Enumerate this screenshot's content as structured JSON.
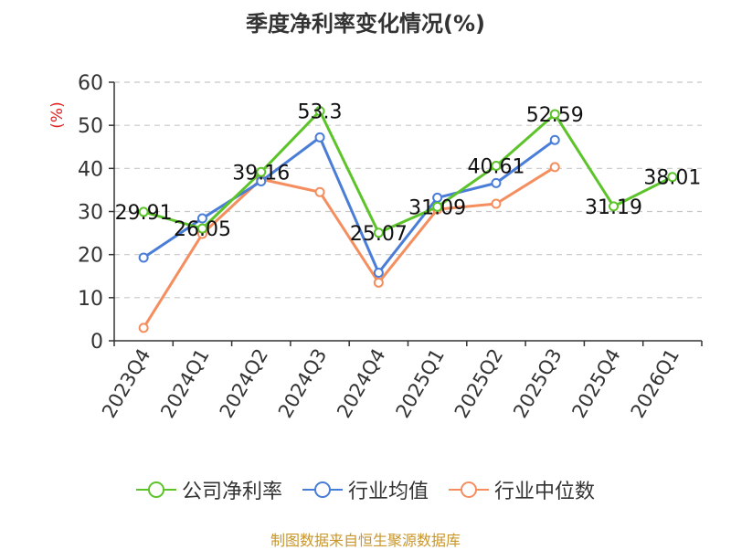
{
  "chart_data": {
    "type": "line",
    "title": "季度净利率变化情况(%)",
    "ylabel": "(%)",
    "ylim": [
      0,
      60
    ],
    "yticks": [
      0,
      10,
      20,
      30,
      40,
      50,
      60
    ],
    "grid": true,
    "legend_position": "bottom",
    "categories": [
      "2023Q4",
      "2024Q1",
      "2024Q2",
      "2024Q3",
      "2024Q4",
      "2025Q1",
      "2025Q2",
      "2025Q3",
      "2025Q4",
      "2026Q1"
    ],
    "series": [
      {
        "name": "公司净利率",
        "color": "#5cc42a",
        "show_labels": true,
        "values": [
          29.91,
          26.05,
          39.16,
          53.3,
          25.07,
          31.09,
          40.61,
          52.59,
          31.19,
          38.01
        ]
      },
      {
        "name": "行业均值",
        "color": "#4a7dd8",
        "show_labels": false,
        "values": [
          19.3,
          28.4,
          37.0,
          47.2,
          15.8,
          33.2,
          36.6,
          46.6,
          null,
          null
        ]
      },
      {
        "name": "行业中位数",
        "color": "#f58e5e",
        "show_labels": false,
        "values": [
          3.0,
          24.8,
          37.5,
          34.5,
          13.5,
          30.5,
          31.8,
          40.3,
          null,
          null
        ]
      }
    ]
  },
  "source_note": "制图数据来自恒生聚源数据库"
}
